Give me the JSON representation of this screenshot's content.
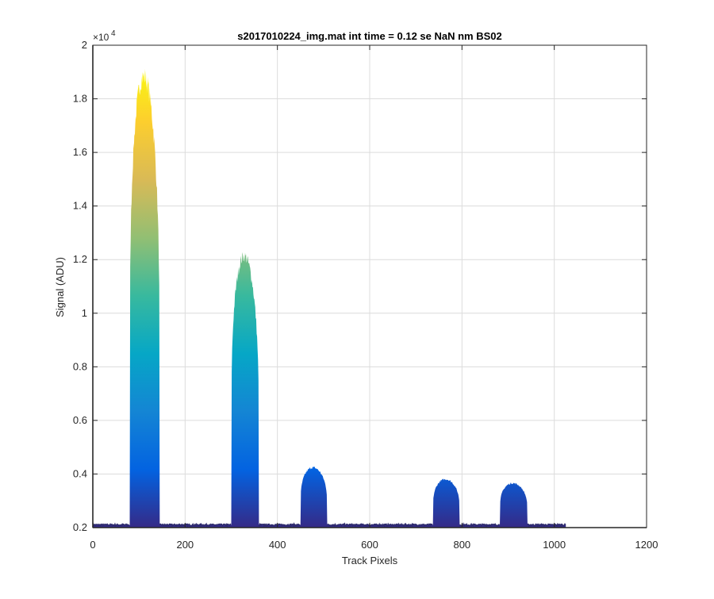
{
  "chart_data": {
    "type": "area",
    "title": "s2017010224_img.mat int time = 0.12 se  NaN nm BS02",
    "xlabel": "Track Pixels",
    "ylabel": "Signal (ADU)",
    "xlim": [
      0,
      1200
    ],
    "ylim": [
      2000,
      20000
    ],
    "x_ticks": [
      0,
      200,
      400,
      600,
      800,
      1000,
      1200
    ],
    "x_tick_labels": [
      "0",
      "200",
      "400",
      "600",
      "800",
      "1000",
      "1200"
    ],
    "y_ticks": [
      2000,
      4000,
      6000,
      8000,
      10000,
      12000,
      14000,
      16000,
      18000,
      20000
    ],
    "y_tick_labels": [
      "0.2",
      "0.4",
      "0.6",
      "0.8",
      "1",
      "1.2",
      "1.4",
      "1.6",
      "1.8",
      "2"
    ],
    "y_exponent_label": "×10",
    "y_exponent_power": "4",
    "grid": true,
    "baseline": 2100,
    "data_extent_x": [
      0,
      1025
    ],
    "colormap": "parula",
    "colormap_colors": [
      "#352a87",
      "#0363e1",
      "#1485d4",
      "#06a7c6",
      "#38b99e",
      "#92bf73",
      "#d9ba56",
      "#fcce2e",
      "#f9fb0e"
    ],
    "line_color": "#2e2a6e",
    "peaks": [
      {
        "x_start": 80,
        "x_end": 145,
        "peak": 19300
      },
      {
        "x_start": 300,
        "x_end": 360,
        "peak": 12400
      },
      {
        "x_start": 450,
        "x_end": 508,
        "peak": 4300
      },
      {
        "x_start": 737,
        "x_end": 795,
        "peak": 3850
      },
      {
        "x_start": 882,
        "x_end": 942,
        "peak": 3700
      }
    ]
  }
}
